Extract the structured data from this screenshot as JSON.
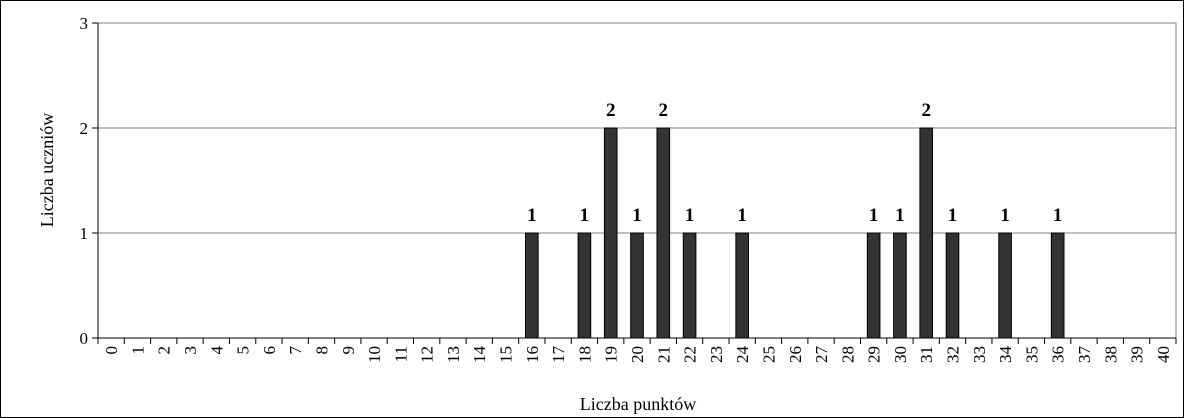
{
  "chart_data": {
    "type": "bar",
    "categories": [
      "0",
      "1",
      "2",
      "3",
      "4",
      "5",
      "6",
      "7",
      "8",
      "9",
      "10",
      "11",
      "12",
      "13",
      "14",
      "15",
      "16",
      "17",
      "18",
      "19",
      "20",
      "21",
      "22",
      "23",
      "24",
      "25",
      "26",
      "27",
      "28",
      "29",
      "30",
      "31",
      "32",
      "33",
      "34",
      "35",
      "36",
      "37",
      "38",
      "39",
      "40"
    ],
    "values": [
      0,
      0,
      0,
      0,
      0,
      0,
      0,
      0,
      0,
      0,
      0,
      0,
      0,
      0,
      0,
      0,
      1,
      0,
      1,
      2,
      1,
      2,
      1,
      0,
      1,
      0,
      0,
      0,
      0,
      1,
      1,
      2,
      1,
      0,
      1,
      0,
      1,
      0,
      0,
      0,
      0
    ],
    "xlabel": "Liczba punktów",
    "ylabel": "Liczba uczniów",
    "ylim": [
      0,
      3
    ],
    "yticks": [
      "0",
      "1",
      "2",
      "3"
    ],
    "grid": true,
    "data_labels": true,
    "bar_color": "#333333"
  }
}
